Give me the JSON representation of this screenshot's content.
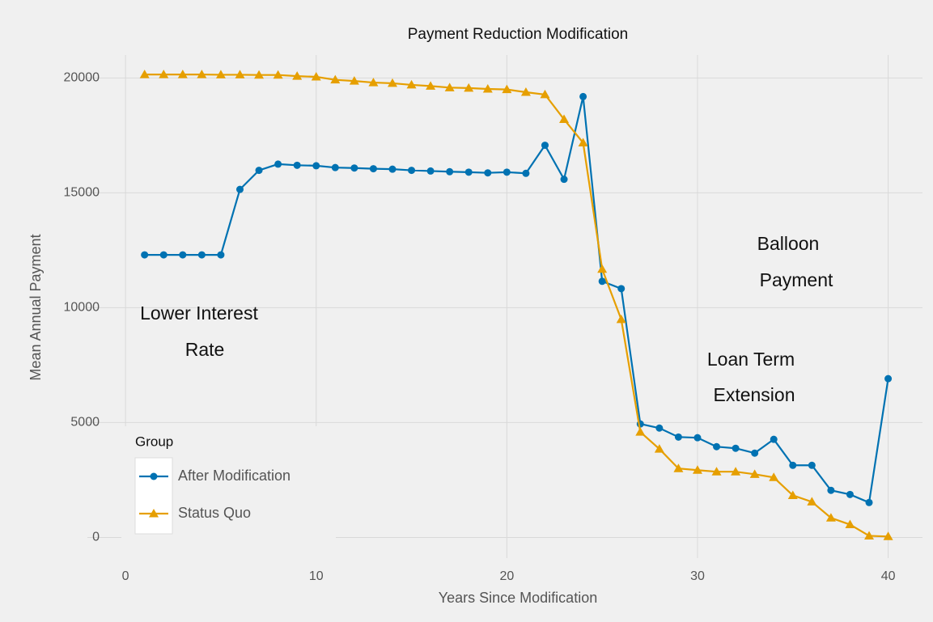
{
  "chart_data": {
    "type": "line",
    "title": "Payment Reduction Modification",
    "x_label": "Years Since Modification",
    "y_label": "Mean Annual Payment",
    "x": [
      1,
      2,
      3,
      4,
      5,
      6,
      7,
      8,
      9,
      10,
      11,
      12,
      13,
      14,
      15,
      16,
      17,
      18,
      19,
      20,
      21,
      22,
      23,
      24,
      25,
      26,
      27,
      28,
      29,
      30,
      31,
      32,
      33,
      34,
      35,
      36,
      37,
      38,
      39,
      40
    ],
    "series": [
      {
        "name": "After Modification",
        "color": "#0072b2",
        "marker": "circle",
        "values": [
          12300,
          12300,
          12300,
          12300,
          12300,
          15150,
          15980,
          16250,
          16200,
          16180,
          16100,
          16080,
          16050,
          16030,
          15980,
          15950,
          15920,
          15900,
          15870,
          15900,
          15850,
          17070,
          15590,
          19190,
          11150,
          10830,
          4940,
          4760,
          4370,
          4340,
          3950,
          3880,
          3670,
          4270,
          3140,
          3140,
          2050,
          1870,
          1520,
          6910
        ]
      },
      {
        "name": "Status Quo",
        "color": "#e69f00",
        "marker": "triangle",
        "values": [
          20150,
          20150,
          20150,
          20150,
          20140,
          20140,
          20130,
          20130,
          20080,
          20050,
          19920,
          19870,
          19800,
          19770,
          19700,
          19650,
          19580,
          19560,
          19520,
          19500,
          19380,
          19280,
          18200,
          17180,
          11680,
          9490,
          4590,
          3850,
          3000,
          2930,
          2860,
          2860,
          2750,
          2610,
          1830,
          1550,
          850,
          560,
          70,
          40
        ]
      }
    ],
    "xlim": [
      -2,
      41.8
    ],
    "ylim": [
      -900,
      21000
    ],
    "xticks": [
      0,
      10,
      20,
      30,
      40
    ],
    "yticks": [
      0,
      5000,
      10000,
      15000,
      20000
    ],
    "grid": true,
    "legend_title": "Group",
    "legend": "bottom-left",
    "annotations": [
      [
        "Lower Interest",
        "Rate"
      ],
      [
        "Balloon",
        "Payment"
      ],
      [
        "Loan Term",
        "Extension"
      ]
    ]
  }
}
